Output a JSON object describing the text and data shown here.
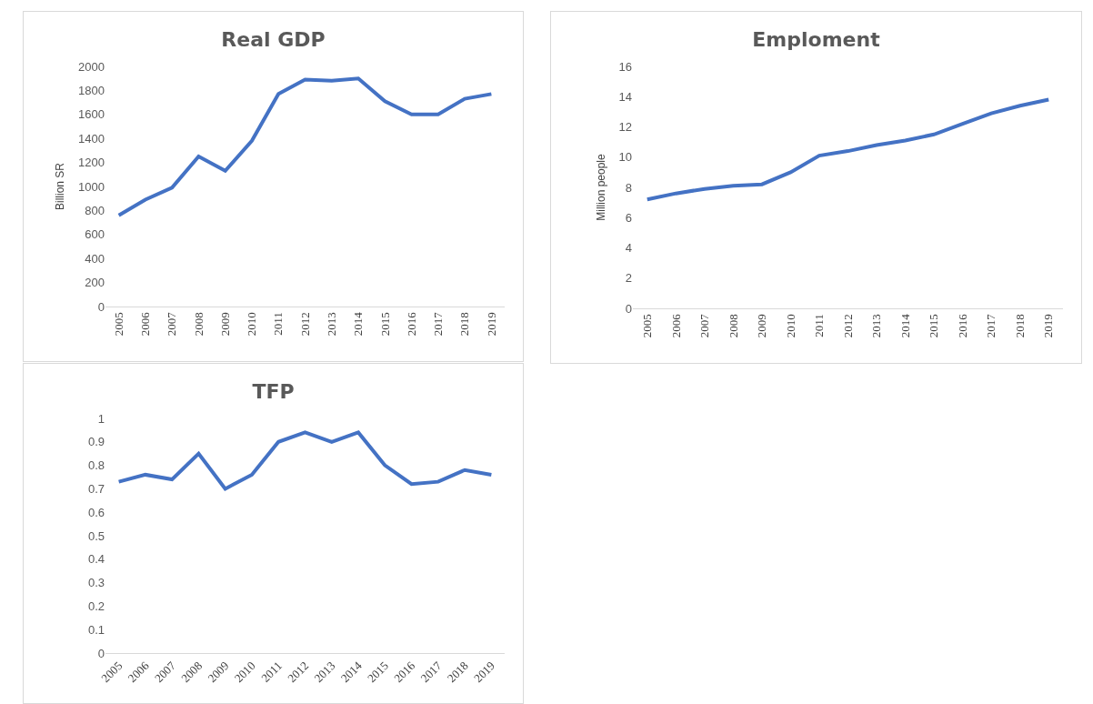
{
  "chart_data": [
    {
      "type": "line",
      "title": "Real GDP",
      "ylabel": "Billion SR",
      "categories": [
        "2005",
        "2006",
        "2007",
        "2008",
        "2009",
        "2010",
        "2011",
        "2012",
        "2013",
        "2014",
        "2015",
        "2016",
        "2017",
        "2018",
        "2019"
      ],
      "series": [
        {
          "color": "#4472c4",
          "values": [
            760,
            890,
            990,
            1250,
            1130,
            1380,
            1770,
            1890,
            1880,
            1900,
            1710,
            1600,
            1600,
            1730,
            1770
          ]
        }
      ],
      "ylim": [
        0,
        2000
      ],
      "yticks": [
        0,
        200,
        400,
        600,
        800,
        1000,
        1200,
        1400,
        1600,
        1800,
        2000
      ],
      "grid": false,
      "marker": "none",
      "line_style": "solid"
    },
    {
      "type": "line",
      "title": "Emploment",
      "ylabel": "Million people",
      "categories": [
        "2005",
        "2006",
        "2007",
        "2008",
        "2009",
        "2010",
        "2011",
        "2012",
        "2013",
        "2014",
        "2015",
        "2016",
        "2017",
        "2018",
        "2019"
      ],
      "series": [
        {
          "color": "#4472c4",
          "values": [
            7.2,
            7.6,
            7.9,
            8.1,
            8.2,
            9.0,
            10.1,
            10.4,
            10.8,
            11.1,
            11.5,
            12.2,
            12.9,
            13.4,
            13.8
          ]
        }
      ],
      "ylim": [
        0,
        16
      ],
      "yticks": [
        0,
        2,
        4,
        6,
        8,
        10,
        12,
        14,
        16
      ],
      "grid": false,
      "marker": "none",
      "line_style": "solid"
    },
    {
      "type": "line",
      "title": "TFP",
      "categories": [
        "2005",
        "2006",
        "2007",
        "2008",
        "2009",
        "2010",
        "2011",
        "2012",
        "2013",
        "2014",
        "2015",
        "2016",
        "2017",
        "2018",
        "2019"
      ],
      "series": [
        {
          "color": "#4472c4",
          "values": [
            0.73,
            0.76,
            0.74,
            0.85,
            0.7,
            0.76,
            0.9,
            0.94,
            0.9,
            0.94,
            0.8,
            0.72,
            0.73,
            0.78,
            0.76
          ]
        }
      ],
      "ylim": [
        0,
        1
      ],
      "yticks": [
        0,
        0.1,
        0.2,
        0.3,
        0.4,
        0.5,
        0.6,
        0.7,
        0.8,
        0.9,
        1
      ],
      "grid": false,
      "marker": "none",
      "line_style": "solid"
    }
  ]
}
